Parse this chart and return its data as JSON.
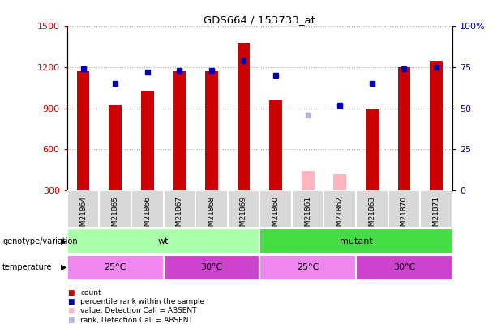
{
  "title": "GDS664 / 153733_at",
  "samples": [
    "GSM21864",
    "GSM21865",
    "GSM21866",
    "GSM21867",
    "GSM21868",
    "GSM21869",
    "GSM21860",
    "GSM21861",
    "GSM21862",
    "GSM21863",
    "GSM21870",
    "GSM21871"
  ],
  "counts": [
    1170,
    920,
    1030,
    1170,
    1170,
    1380,
    960,
    null,
    null,
    890,
    1200,
    1250
  ],
  "absent_counts": [
    null,
    null,
    null,
    null,
    null,
    null,
    null,
    440,
    420,
    null,
    null,
    null
  ],
  "ranks": [
    74,
    65,
    72,
    73,
    73,
    79,
    70,
    null,
    52,
    65,
    74,
    75
  ],
  "absent_rank_val": 46,
  "absent_rank_idx": 7,
  "ylim_left": [
    300,
    1500
  ],
  "ylim_right": [
    0,
    100
  ],
  "yticks_left": [
    300,
    600,
    900,
    1200,
    1500
  ],
  "yticks_right": [
    0,
    25,
    50,
    75,
    100
  ],
  "ytick_labels_right": [
    "0",
    "25",
    "50",
    "75",
    "100%"
  ],
  "bar_color": "#cc0000",
  "absent_bar_color": "#ffb6c1",
  "rank_color": "#0000bb",
  "absent_rank_color": "#b0b8d8",
  "plot_bg_color": "#ffffff",
  "label_bg_color": "#d8d8d8",
  "grid_color": "#aaaaaa",
  "genotype_wt_color": "#aaffaa",
  "genotype_mutant_color": "#44dd44",
  "temp_25_color": "#ee88ee",
  "temp_30_color": "#cc44cc",
  "bar_width": 0.4,
  "fig_width": 6.13,
  "fig_height": 4.05,
  "dpi": 100
}
